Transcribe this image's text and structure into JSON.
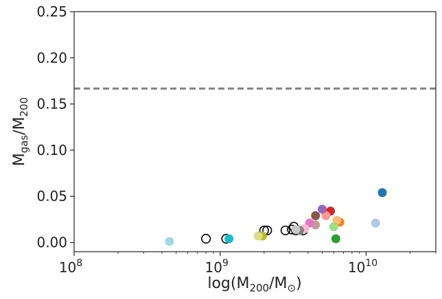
{
  "chart_data": {
    "type": "scatter",
    "xscale": "log",
    "xlim": [
      100000000,
      30000000000
    ],
    "ylim": [
      -0.01,
      0.25
    ],
    "xlabel": {
      "prefix": "log(M",
      "sub1": "200",
      "mid": "/M",
      "sub2": "⊙",
      "suffix": ")"
    },
    "ylabel": {
      "prefix": "M",
      "sub1": "gas",
      "mid": "/M",
      "sub2": "200",
      "suffix": ""
    },
    "xticks": [
      {
        "value": 100000000,
        "base": "10",
        "exp": "8"
      },
      {
        "value": 1000000000,
        "base": "10",
        "exp": "9"
      },
      {
        "value": 10000000000,
        "base": "10",
        "exp": "10"
      }
    ],
    "yticks": [
      {
        "value": 0.0,
        "label": "0.00"
      },
      {
        "value": 0.05,
        "label": "0.05"
      },
      {
        "value": 0.1,
        "label": "0.10"
      },
      {
        "value": 0.15,
        "label": "0.15"
      },
      {
        "value": 0.2,
        "label": "0.20"
      },
      {
        "value": 0.25,
        "label": "0.25"
      }
    ],
    "reference_line": {
      "y": 0.1667,
      "color": "#808080",
      "style": "dashed"
    },
    "grid": false,
    "filled_points": [
      {
        "x": 12900000000,
        "y": 0.054,
        "color": "#1f77b4"
      },
      {
        "x": 11600000000,
        "y": 0.021,
        "color": "#aec7e8"
      },
      {
        "x": 6600000000,
        "y": 0.022,
        "color": "#ff7f0e"
      },
      {
        "x": 6300000000,
        "y": 0.024,
        "color": "#ffbb78"
      },
      {
        "x": 6200000000,
        "y": 0.004,
        "color": "#2ca02c"
      },
      {
        "x": 6000000000,
        "y": 0.017,
        "color": "#98df8a"
      },
      {
        "x": 5700000000,
        "y": 0.034,
        "color": "#d62728"
      },
      {
        "x": 5300000000,
        "y": 0.029,
        "color": "#ff9896"
      },
      {
        "x": 5000000000,
        "y": 0.036,
        "color": "#9467bd"
      },
      {
        "x": 4500000000,
        "y": 0.029,
        "color": "#8c564b"
      },
      {
        "x": 4500000000,
        "y": 0.019,
        "color": "#c49c94"
      },
      {
        "x": 4100000000,
        "y": 0.021,
        "color": "#e377c2"
      },
      {
        "x": 3800000000,
        "y": 0.015,
        "color": "#f7b6d2"
      },
      {
        "x": 3500000000,
        "y": 0.013,
        "color": "#7f7f7f"
      },
      {
        "x": 3300000000,
        "y": 0.014,
        "color": "#c7c7c7"
      },
      {
        "x": 1950000000,
        "y": 0.007,
        "color": "#bcbd22"
      },
      {
        "x": 1820000000,
        "y": 0.007,
        "color": "#dbdb8d"
      },
      {
        "x": 1150000000,
        "y": 0.004,
        "color": "#17becf"
      },
      {
        "x": 450000000,
        "y": 0.001,
        "color": "#9edae5"
      }
    ],
    "open_points": [
      {
        "x": 800000000,
        "y": 0.004
      },
      {
        "x": 1100000000,
        "y": 0.004
      },
      {
        "x": 2000000000,
        "y": 0.013
      },
      {
        "x": 2100000000,
        "y": 0.013
      },
      {
        "x": 2800000000,
        "y": 0.013
      },
      {
        "x": 3100000000,
        "y": 0.014
      },
      {
        "x": 3200000000,
        "y": 0.017
      },
      {
        "x": 3300000000,
        "y": 0.013
      },
      {
        "x": 3700000000,
        "y": 0.013
      }
    ]
  }
}
